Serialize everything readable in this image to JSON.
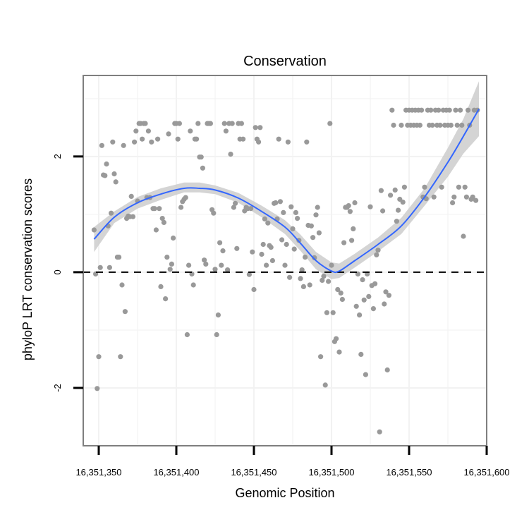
{
  "chart_data": {
    "type": "scatter",
    "title": "Conservation",
    "xlabel": "Genomic Position",
    "ylabel": "phyloP LRT conservation scores",
    "xlim": [
      16351340,
      16351600
    ],
    "ylim": [
      -3.0,
      3.4
    ],
    "x_ticks": [
      16351350,
      16351400,
      16351450,
      16351500,
      16351550,
      16351600
    ],
    "x_tick_labels": [
      "16,351,350",
      "16,351,400",
      "16,351,450",
      "16,351,500",
      "16,351,550",
      "16,351,600"
    ],
    "y_ticks": [
      -2,
      0,
      2
    ],
    "y_tick_labels": [
      "-2",
      "0",
      "2"
    ],
    "grid": true,
    "reference_line": {
      "y": 0,
      "style": "dashed"
    },
    "colors": {
      "points": "#999999",
      "smooth": "#3366FF",
      "ribbon": "#cccccc",
      "panel_border": "#7f7f7f",
      "grid": "#f2f2f2"
    },
    "points": [
      [
        16351347,
        0.73
      ],
      [
        16351348,
        -0.03
      ],
      [
        16351349,
        -2.01
      ],
      [
        16351350,
        -1.46
      ],
      [
        16351351,
        0.08
      ],
      [
        16351352,
        2.19
      ],
      [
        16351353,
        1.68
      ],
      [
        16351354,
        1.67
      ],
      [
        16351355,
        1.87
      ],
      [
        16351356,
        0.8
      ],
      [
        16351357,
        0.08
      ],
      [
        16351358,
        1.02
      ],
      [
        16351359,
        2.25
      ],
      [
        16351360,
        1.7
      ],
      [
        16351361,
        1.56
      ],
      [
        16351362,
        0.26
      ],
      [
        16351363,
        0.26
      ],
      [
        16351364,
        -1.46
      ],
      [
        16351365,
        -0.22
      ],
      [
        16351366,
        2.19
      ],
      [
        16351367,
        -0.68
      ],
      [
        16351368,
        0.93
      ],
      [
        16351369,
        0.97
      ],
      [
        16351370,
        0.96
      ],
      [
        16351371,
        1.31
      ],
      [
        16351372,
        0.96
      ],
      [
        16351373,
        2.25
      ],
      [
        16351374,
        2.44
      ],
      [
        16351375,
        1.23
      ],
      [
        16351376,
        2.57
      ],
      [
        16351377,
        2.57
      ],
      [
        16351378,
        2.3
      ],
      [
        16351379,
        2.57
      ],
      [
        16351380,
        2.57
      ],
      [
        16351381,
        1.29
      ],
      [
        16351382,
        2.44
      ],
      [
        16351383,
        1.29
      ],
      [
        16351384,
        2.25
      ],
      [
        16351385,
        1.1
      ],
      [
        16351386,
        1.1
      ],
      [
        16351387,
        0.73
      ],
      [
        16351388,
        2.3
      ],
      [
        16351389,
        1.1
      ],
      [
        16351390,
        -0.25
      ],
      [
        16351391,
        0.93
      ],
      [
        16351392,
        0.86
      ],
      [
        16351393,
        -0.46
      ],
      [
        16351394,
        0.26
      ],
      [
        16351395,
        2.39
      ],
      [
        16351396,
        0.05
      ],
      [
        16351397,
        0.14
      ],
      [
        16351398,
        0.59
      ],
      [
        16351399,
        2.57
      ],
      [
        16351400,
        2.57
      ],
      [
        16351401,
        2.3
      ],
      [
        16351402,
        2.57
      ],
      [
        16351403,
        1.12
      ],
      [
        16351404,
        1.22
      ],
      [
        16351405,
        1.26
      ],
      [
        16351406,
        1.29
      ],
      [
        16351407,
        -1.08
      ],
      [
        16351408,
        0.12
      ],
      [
        16351409,
        2.44
      ],
      [
        16351410,
        -0.03
      ],
      [
        16351411,
        -0.22
      ],
      [
        16351412,
        2.3
      ],
      [
        16351413,
        2.3
      ],
      [
        16351414,
        2.57
      ],
      [
        16351415,
        1.99
      ],
      [
        16351416,
        1.99
      ],
      [
        16351417,
        1.8
      ],
      [
        16351418,
        0.21
      ],
      [
        16351419,
        0.14
      ],
      [
        16351420,
        2.57
      ],
      [
        16351421,
        2.57
      ],
      [
        16351422,
        2.57
      ],
      [
        16351423,
        1.08
      ],
      [
        16351424,
        1.02
      ],
      [
        16351425,
        0.05
      ],
      [
        16351426,
        -1.08
      ],
      [
        16351427,
        -0.74
      ],
      [
        16351428,
        0.51
      ],
      [
        16351429,
        0.12
      ],
      [
        16351430,
        0.37
      ],
      [
        16351431,
        2.57
      ],
      [
        16351432,
        2.44
      ],
      [
        16351433,
        0.04
      ],
      [
        16351434,
        2.57
      ],
      [
        16351435,
        2.04
      ],
      [
        16351436,
        2.57
      ],
      [
        16351437,
        1.12
      ],
      [
        16351438,
        1.19
      ],
      [
        16351439,
        0.41
      ],
      [
        16351440,
        2.57
      ],
      [
        16351441,
        2.3
      ],
      [
        16351442,
        2.57
      ],
      [
        16351443,
        2.3
      ],
      [
        16351444,
        1.06
      ],
      [
        16351445,
        1.12
      ],
      [
        16351446,
        1.1
      ],
      [
        16351447,
        -0.04
      ],
      [
        16351448,
        1.1
      ],
      [
        16351449,
        0.35
      ],
      [
        16351450,
        -0.3
      ],
      [
        16351451,
        2.5
      ],
      [
        16351452,
        2.3
      ],
      [
        16351453,
        2.25
      ],
      [
        16351454,
        2.5
      ],
      [
        16351455,
        0.31
      ],
      [
        16351456,
        0.48
      ],
      [
        16351457,
        0.92
      ],
      [
        16351458,
        0.12
      ],
      [
        16351459,
        0.85
      ],
      [
        16351460,
        0.46
      ],
      [
        16351461,
        0.43
      ],
      [
        16351462,
        0.2
      ],
      [
        16351463,
        1.19
      ],
      [
        16351464,
        1.2
      ],
      [
        16351465,
        0.92
      ],
      [
        16351466,
        2.3
      ],
      [
        16351467,
        1.22
      ],
      [
        16351468,
        0.56
      ],
      [
        16351469,
        1.03
      ],
      [
        16351470,
        0.12
      ],
      [
        16351471,
        0.48
      ],
      [
        16351472,
        2.25
      ],
      [
        16351473,
        -0.09
      ],
      [
        16351474,
        1.13
      ],
      [
        16351475,
        0.75
      ],
      [
        16351476,
        0.4
      ],
      [
        16351477,
        1.03
      ],
      [
        16351478,
        0.93
      ],
      [
        16351479,
        0.55
      ],
      [
        16351480,
        -0.11
      ],
      [
        16351481,
        0.04
      ],
      [
        16351482,
        -0.25
      ],
      [
        16351483,
        0.26
      ],
      [
        16351484,
        2.25
      ],
      [
        16351485,
        0.81
      ],
      [
        16351486,
        -0.22
      ],
      [
        16351487,
        0.8
      ],
      [
        16351488,
        0.6
      ],
      [
        16351489,
        0.25
      ],
      [
        16351490,
        0.99
      ],
      [
        16351491,
        1.12
      ],
      [
        16351492,
        0.68
      ],
      [
        16351493,
        -1.46
      ],
      [
        16351494,
        -0.14
      ],
      [
        16351495,
        -0.07
      ],
      [
        16351496,
        -1.95
      ],
      [
        16351497,
        -0.7
      ],
      [
        16351498,
        -0.16
      ],
      [
        16351499,
        2.57
      ],
      [
        16351500,
        0.12
      ],
      [
        16351501,
        -0.7
      ],
      [
        16351502,
        -1.2
      ],
      [
        16351503,
        -1.15
      ],
      [
        16351504,
        -0.3
      ],
      [
        16351505,
        -1.38
      ],
      [
        16351506,
        -0.36
      ],
      [
        16351507,
        -0.47
      ],
      [
        16351508,
        0.51
      ],
      [
        16351509,
        1.12
      ],
      [
        16351510,
        1.12
      ],
      [
        16351511,
        1.15
      ],
      [
        16351512,
        1.05
      ],
      [
        16351513,
        0.55
      ],
      [
        16351514,
        0.75
      ],
      [
        16351515,
        1.2
      ],
      [
        16351516,
        -0.59
      ],
      [
        16351517,
        -0.03
      ],
      [
        16351518,
        -0.74
      ],
      [
        16351519,
        -1.42
      ],
      [
        16351520,
        -0.13
      ],
      [
        16351521,
        -0.48
      ],
      [
        16351522,
        -1.77
      ],
      [
        16351523,
        -0.03
      ],
      [
        16351524,
        -0.42
      ],
      [
        16351525,
        1.13
      ],
      [
        16351526,
        -0.23
      ],
      [
        16351527,
        -0.63
      ],
      [
        16351528,
        -0.2
      ],
      [
        16351529,
        0.3
      ],
      [
        16351530,
        0.38
      ],
      [
        16351531,
        -2.76
      ],
      [
        16351532,
        1.41
      ],
      [
        16351533,
        1.06
      ],
      [
        16351534,
        -0.55
      ],
      [
        16351535,
        -0.34
      ],
      [
        16351536,
        -1.69
      ],
      [
        16351537,
        -0.4
      ],
      [
        16351538,
        1.33
      ],
      [
        16351539,
        2.8
      ],
      [
        16351540,
        2.54
      ],
      [
        16351541,
        1.42
      ],
      [
        16351542,
        0.88
      ],
      [
        16351543,
        1.07
      ],
      [
        16351544,
        1.26
      ],
      [
        16351545,
        2.54
      ],
      [
        16351546,
        1.21
      ],
      [
        16351547,
        1.47
      ],
      [
        16351548,
        2.8
      ],
      [
        16351549,
        2.54
      ],
      [
        16351550,
        2.8
      ],
      [
        16351551,
        2.54
      ],
      [
        16351552,
        2.8
      ],
      [
        16351553,
        2.54
      ],
      [
        16351554,
        2.8
      ],
      [
        16351555,
        2.54
      ],
      [
        16351556,
        2.8
      ],
      [
        16351557,
        2.54
      ],
      [
        16351558,
        2.8
      ],
      [
        16351559,
        1.3
      ],
      [
        16351560,
        1.47
      ],
      [
        16351561,
        1.27
      ],
      [
        16351562,
        2.8
      ],
      [
        16351563,
        2.54
      ],
      [
        16351564,
        2.8
      ],
      [
        16351565,
        2.54
      ],
      [
        16351566,
        1.3
      ],
      [
        16351567,
        2.8
      ],
      [
        16351568,
        2.54
      ],
      [
        16351569,
        2.8
      ],
      [
        16351570,
        2.54
      ],
      [
        16351571,
        1.47
      ],
      [
        16351572,
        2.8
      ],
      [
        16351573,
        2.54
      ],
      [
        16351574,
        2.8
      ],
      [
        16351575,
        2.54
      ],
      [
        16351576,
        2.8
      ],
      [
        16351577,
        2.54
      ],
      [
        16351578,
        1.2
      ],
      [
        16351579,
        1.3
      ],
      [
        16351580,
        2.8
      ],
      [
        16351581,
        2.54
      ],
      [
        16351582,
        1.47
      ],
      [
        16351583,
        2.8
      ],
      [
        16351584,
        2.54
      ],
      [
        16351585,
        0.62
      ],
      [
        16351586,
        1.47
      ],
      [
        16351587,
        1.3
      ],
      [
        16351588,
        2.8
      ],
      [
        16351589,
        2.54
      ],
      [
        16351590,
        1.26
      ],
      [
        16351591,
        1.3
      ],
      [
        16351592,
        2.8
      ],
      [
        16351593,
        1.24
      ],
      [
        16351594,
        2.8
      ]
    ],
    "smooth": {
      "x": [
        16351347,
        16351360,
        16351375,
        16351390,
        16351405,
        16351415,
        16351425,
        16351440,
        16351455,
        16351470,
        16351480,
        16351490,
        16351500,
        16351505,
        16351515,
        16351530,
        16351545,
        16351560,
        16351575,
        16351585,
        16351595
      ],
      "y": [
        0.57,
        0.95,
        1.2,
        1.35,
        1.45,
        1.45,
        1.42,
        1.28,
        1.05,
        0.78,
        0.5,
        0.2,
        0.02,
        0.02,
        0.2,
        0.48,
        0.8,
        1.3,
        1.9,
        2.35,
        2.82
      ],
      "lower": [
        0.35,
        0.85,
        1.1,
        1.25,
        1.38,
        1.38,
        1.35,
        1.2,
        0.95,
        0.66,
        0.37,
        0.05,
        -0.12,
        -0.1,
        0.08,
        0.36,
        0.66,
        1.15,
        1.65,
        2.05,
        2.35
      ],
      "upper": [
        0.78,
        1.05,
        1.3,
        1.45,
        1.55,
        1.55,
        1.5,
        1.37,
        1.15,
        0.9,
        0.65,
        0.35,
        0.17,
        0.15,
        0.32,
        0.6,
        0.94,
        1.45,
        2.15,
        2.65,
        3.3
      ]
    }
  }
}
